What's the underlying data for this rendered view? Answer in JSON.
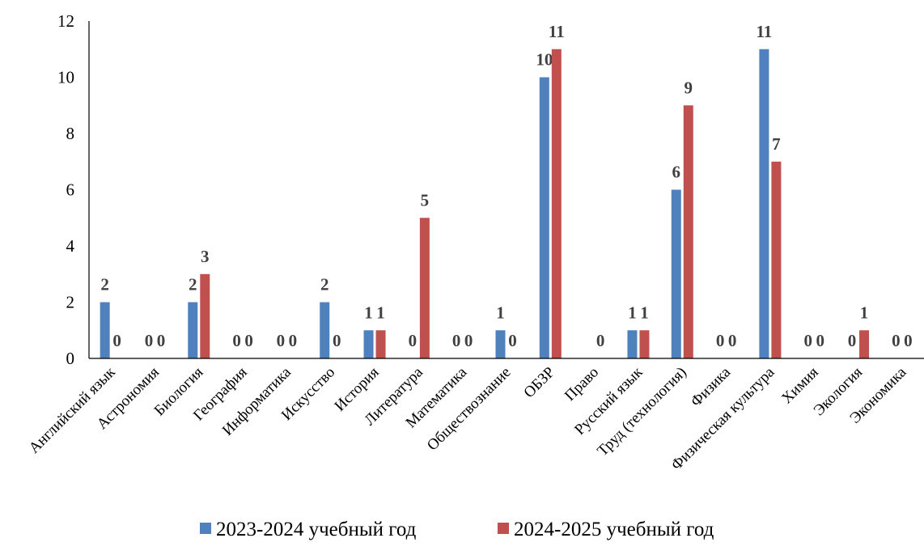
{
  "chart_data": {
    "type": "bar",
    "title": "",
    "xlabel": "",
    "ylabel": "",
    "ylim": [
      0,
      12
    ],
    "yticks": [
      0,
      2,
      4,
      6,
      8,
      10,
      12
    ],
    "grid": false,
    "legend_position": "bottom",
    "categories": [
      "Английский язык",
      "Астрономия",
      "Биология",
      "География",
      "Информатика",
      "Искусство",
      "История",
      "Литература",
      "Математика",
      "Обществознание",
      "ОБЗР",
      "Право",
      "Русский язык",
      "Труд (технология)",
      "Физика",
      "Физическая культура",
      "Химия",
      "Экология",
      "Экономика"
    ],
    "series": [
      {
        "name": "2023-2024 учебный год",
        "color": "#4f81bd",
        "values": [
          2,
          0,
          2,
          0,
          0,
          2,
          1,
          0,
          0,
          1,
          10,
          null,
          1,
          6,
          0,
          11,
          0,
          0,
          0
        ]
      },
      {
        "name": "2024-2025 учебный год",
        "color": "#c0504d",
        "values": [
          0,
          0,
          3,
          0,
          0,
          0,
          1,
          5,
          0,
          0,
          11,
          0,
          1,
          9,
          0,
          7,
          0,
          1,
          0
        ]
      }
    ]
  }
}
